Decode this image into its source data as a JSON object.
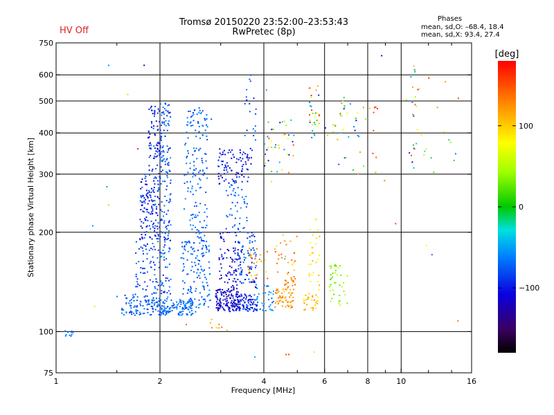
{
  "header": {
    "title_line1": "Tromsø 20150220 23:52:00–23:53:43",
    "title_line2": "RwPretec (8p)",
    "hv_status": "HV Off",
    "hv_status_color": "#dd2222"
  },
  "stats": {
    "heading": "Phases",
    "line_o": "mean, sd,O: –68.4, 18.4",
    "line_x": "mean, sd,X:  93.4, 27.4"
  },
  "chart_data": {
    "type": "scatter",
    "xlabel": "Frequency [MHz]",
    "ylabel": "Stationary phase Virtual Height [km]",
    "x_scale": "log",
    "y_scale": "log",
    "xlim": [
      1,
      16
    ],
    "ylim": [
      75,
      750
    ],
    "x_ticks": [
      1,
      2,
      4,
      6,
      8,
      10,
      16
    ],
    "x_tick_labels": [
      "1",
      "2",
      "4",
      "6",
      "8",
      "10",
      "16"
    ],
    "x_major_grid": [
      2,
      4,
      6,
      8,
      10
    ],
    "y_ticks": [
      75,
      100,
      200,
      300,
      400,
      500,
      600,
      750
    ],
    "y_tick_labels": [
      "75",
      "100",
      "200",
      "300",
      "400",
      "500",
      "600",
      "750"
    ],
    "y_major_grid": [
      100,
      200,
      300,
      400,
      500,
      600
    ],
    "grid": true,
    "colorbar": {
      "label": "[deg]",
      "range": [
        -180,
        180
      ],
      "ticks": [
        100,
        0,
        -100
      ],
      "tick_labels": [
        "100",
        "0",
        "−100"
      ]
    },
    "series": [
      {
        "role": "trace-clusters",
        "clusters": [
          {
            "f": [
              1.05,
              1.12
            ],
            "h": [
              96,
              101
            ],
            "n": 10,
            "phase": [
              -80,
              -55
            ]
          },
          {
            "f": [
              1.55,
              2.0
            ],
            "h": [
              112,
              130
            ],
            "n": 110,
            "phase": [
              -90,
              -60
            ]
          },
          {
            "f": [
              1.7,
              2.0
            ],
            "h": [
              130,
              190
            ],
            "n": 70,
            "phase": [
              -100,
              -60
            ]
          },
          {
            "f": [
              1.75,
              2.0
            ],
            "h": [
              190,
              300
            ],
            "n": 140,
            "phase": [
              -120,
              -70
            ]
          },
          {
            "f": [
              1.85,
              2.0
            ],
            "h": [
              300,
              490
            ],
            "n": 70,
            "phase": [
              -120,
              -70
            ]
          },
          {
            "f": [
              2.0,
              2.15
            ],
            "h": [
              112,
              500
            ],
            "n": 200,
            "phase": [
              -100,
              -55
            ]
          },
          {
            "f": [
              2.0,
              2.55
            ],
            "h": [
              112,
              125
            ],
            "n": 100,
            "phase": [
              -80,
              -55
            ]
          },
          {
            "f": [
              2.3,
              2.8
            ],
            "h": [
              118,
              190
            ],
            "n": 140,
            "phase": [
              -90,
              -55
            ]
          },
          {
            "f": [
              2.35,
              2.75
            ],
            "h": [
              190,
              480
            ],
            "n": 150,
            "phase": [
              -85,
              -55
            ]
          },
          {
            "f": [
              2.9,
              3.4
            ],
            "h": [
              115,
              135
            ],
            "n": 140,
            "phase": [
              -140,
              -90
            ]
          },
          {
            "f": [
              2.95,
              3.4
            ],
            "h": [
              135,
              200
            ],
            "n": 70,
            "phase": [
              -130,
              -90
            ]
          },
          {
            "f": [
              3.3,
              3.85
            ],
            "h": [
              115,
              130
            ],
            "n": 90,
            "phase": [
              -120,
              -70
            ]
          },
          {
            "f": [
              3.3,
              3.8
            ],
            "h": [
              140,
              200
            ],
            "n": 90,
            "phase": [
              -110,
              -60
            ]
          },
          {
            "f": [
              2.95,
              3.7
            ],
            "h": [
              280,
              360
            ],
            "n": 90,
            "phase": [
              -120,
              -80
            ]
          },
          {
            "f": [
              3.1,
              3.6
            ],
            "h": [
              200,
              280
            ],
            "n": 45,
            "phase": [
              -90,
              -55
            ]
          },
          {
            "f": [
              3.5,
              3.8
            ],
            "h": [
              380,
              620
            ],
            "n": 20,
            "phase": [
              -100,
              -60
            ]
          },
          {
            "f": [
              3.8,
              4.3
            ],
            "h": [
              115,
              140
            ],
            "n": 35,
            "phase": [
              -80,
              -40
            ]
          },
          {
            "f": [
              3.6,
              4.1
            ],
            "h": [
              140,
              180
            ],
            "n": 25,
            "phase": [
              80,
              150
            ]
          },
          {
            "f": [
              4.3,
              4.9
            ],
            "h": [
              118,
              135
            ],
            "n": 55,
            "phase": [
              100,
              140
            ]
          },
          {
            "f": [
              4.6,
              5.0
            ],
            "h": [
              135,
              150
            ],
            "n": 20,
            "phase": [
              110,
              150
            ]
          },
          {
            "f": [
              4.3,
              5.0
            ],
            "h": [
              150,
              200
            ],
            "n": 25,
            "phase": [
              90,
              150
            ]
          },
          {
            "f": [
              4.0,
              4.9
            ],
            "h": [
              300,
              450
            ],
            "n": 40,
            "phase": [
              -120,
              160
            ]
          },
          {
            "f": [
              5.2,
              5.75
            ],
            "h": [
              115,
              130
            ],
            "n": 30,
            "phase": [
              80,
              130
            ]
          },
          {
            "f": [
              5.4,
              5.8
            ],
            "h": [
              130,
              220
            ],
            "n": 30,
            "phase": [
              60,
              120
            ]
          },
          {
            "f": [
              5.4,
              5.8
            ],
            "h": [
              380,
              560
            ],
            "n": 30,
            "phase": [
              -100,
              170
            ]
          },
          {
            "f": [
              6.2,
              7.0
            ],
            "h": [
              120,
              160
            ],
            "n": 40,
            "phase": [
              20,
              60
            ]
          },
          {
            "f": [
              6.0,
              7.5
            ],
            "h": [
              380,
              520
            ],
            "n": 25,
            "phase": [
              -120,
              150
            ]
          },
          {
            "f": [
              2.8,
              3.2
            ],
            "h": [
              100,
              115
            ],
            "n": 8,
            "phase": [
              100,
              140
            ]
          },
          {
            "f": [
              6.5,
              8.0
            ],
            "h": [
              240,
              500
            ],
            "n": 10,
            "phase": [
              -120,
              150
            ]
          },
          {
            "f": [
              8.0,
              9.0
            ],
            "h": [
              250,
              500
            ],
            "n": 10,
            "phase": [
              90,
              170
            ]
          },
          {
            "f": [
              10.5,
              11.2
            ],
            "h": [
              300,
              650
            ],
            "n": 20,
            "phase": [
              -120,
              180
            ]
          },
          {
            "f": [
              11.0,
              15.0
            ],
            "h": [
              250,
              600
            ],
            "n": 15,
            "phase": [
              -120,
              160
            ]
          },
          {
            "f": [
              1.2,
              15.0
            ],
            "h": [
              80,
              700
            ],
            "n": 30,
            "phase": [
              -150,
              180
            ]
          }
        ]
      }
    ]
  }
}
